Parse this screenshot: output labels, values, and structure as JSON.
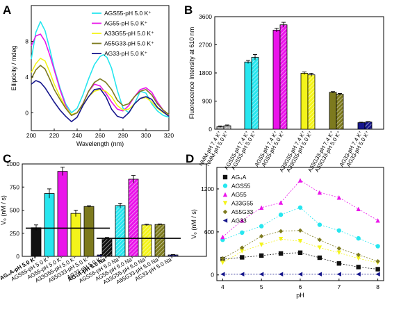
{
  "colors": {
    "cyan": "#27e6ef",
    "magenta": "#ea14ea",
    "yellow": "#f4f41a",
    "olive": "#7d7a1e",
    "navy": "#16168c",
    "black": "#111111",
    "gray": "#b7b7b7"
  },
  "chart_data": [
    {
      "panel": "A",
      "type": "line",
      "xlabel": "Wavelength (nm)",
      "ylabel": "Ellipticity / mdeg",
      "xlim": [
        200,
        320
      ],
      "ylim": [
        -2,
        12
      ],
      "xticks": [
        200,
        220,
        240,
        260,
        280,
        300,
        320
      ],
      "yticks": [
        0,
        4,
        8
      ],
      "legend_position": "top-right",
      "series": [
        {
          "name": "AGS55-pH 5.0 K⁺",
          "color": "cyan",
          "x": [
            200,
            204,
            208,
            212,
            216,
            220,
            225,
            230,
            235,
            240,
            245,
            250,
            255,
            260,
            263,
            266,
            270,
            275,
            280,
            285,
            290,
            295,
            300,
            305,
            310,
            315,
            320
          ],
          "y": [
            6.0,
            9.0,
            10.2,
            9.2,
            7.2,
            5.0,
            2.8,
            1.0,
            0.0,
            0.5,
            2.0,
            3.8,
            5.4,
            6.3,
            6.5,
            6.2,
            5.0,
            2.5,
            0.5,
            0.0,
            1.0,
            2.4,
            2.2,
            1.0,
            0.2,
            -0.3,
            -0.5
          ]
        },
        {
          "name": "AG55-pH 5.0 K⁺",
          "color": "magenta",
          "x": [
            200,
            204,
            208,
            212,
            216,
            220,
            225,
            230,
            235,
            240,
            245,
            250,
            255,
            260,
            265,
            270,
            275,
            280,
            285,
            290,
            295,
            300,
            305,
            310,
            315,
            320
          ],
          "y": [
            7.5,
            8.6,
            8.8,
            8.0,
            6.5,
            4.8,
            2.6,
            0.8,
            -0.3,
            0.0,
            1.0,
            2.4,
            3.2,
            3.0,
            2.2,
            1.2,
            0.4,
            0.2,
            0.8,
            1.8,
            2.6,
            2.8,
            2.3,
            1.2,
            0.3,
            -0.3
          ]
        },
        {
          "name": "A33G55-pH 5.0 K⁺",
          "color": "yellow",
          "x": [
            200,
            204,
            208,
            212,
            216,
            220,
            225,
            230,
            235,
            240,
            245,
            250,
            255,
            260,
            265,
            270,
            275,
            280,
            285,
            290,
            295,
            300,
            305,
            310,
            315,
            320
          ],
          "y": [
            4.5,
            5.5,
            6.1,
            5.8,
            4.6,
            3.2,
            1.8,
            0.6,
            -0.2,
            0.0,
            0.8,
            1.8,
            2.4,
            2.6,
            2.4,
            1.8,
            0.8,
            0.3,
            0.4,
            1.0,
            1.6,
            1.7,
            1.2,
            0.5,
            0.0,
            -0.2
          ]
        },
        {
          "name": "A55G33-pH 5.0 K⁺",
          "color": "olive",
          "x": [
            200,
            204,
            208,
            212,
            216,
            220,
            225,
            230,
            235,
            240,
            245,
            250,
            255,
            260,
            265,
            270,
            275,
            280,
            285,
            290,
            295,
            300,
            305,
            310,
            315,
            320
          ],
          "y": [
            3.8,
            4.8,
            5.3,
            4.9,
            3.8,
            2.6,
            1.5,
            0.5,
            -0.3,
            0.0,
            1.0,
            2.4,
            3.4,
            3.8,
            3.4,
            2.6,
            1.4,
            0.8,
            1.0,
            1.8,
            2.4,
            2.6,
            2.0,
            1.0,
            0.3,
            -0.2
          ]
        },
        {
          "name": "AG33-pH 5.0 K⁺",
          "color": "navy",
          "x": [
            200,
            204,
            208,
            212,
            216,
            220,
            225,
            230,
            235,
            240,
            245,
            250,
            255,
            260,
            265,
            270,
            275,
            280,
            285,
            290,
            295,
            300,
            305,
            310,
            315,
            320
          ],
          "y": [
            3.2,
            3.6,
            3.4,
            2.8,
            2.0,
            1.2,
            0.3,
            -0.4,
            -1.0,
            -0.5,
            0.8,
            1.8,
            2.6,
            2.7,
            1.8,
            0.4,
            -0.4,
            -0.6,
            0.0,
            1.0,
            1.6,
            1.8,
            1.5,
            0.6,
            0.1,
            -0.4
          ]
        }
      ]
    },
    {
      "panel": "B",
      "type": "bar",
      "ylabel": "Fluorescence Intensity at 610 nm",
      "ylim": [
        0,
        3600
      ],
      "yticks": [
        0,
        900,
        1800,
        2700,
        3600
      ],
      "groups": [
        {
          "color": "gray",
          "bars": [
            {
              "label": "NMM-pH 7.4 K⁺",
              "value": 80,
              "err": 25,
              "hatch": false
            },
            {
              "label": "NMM-pH 5.0 K⁺",
              "value": 110,
              "err": 25,
              "hatch": true
            }
          ]
        },
        {
          "color": "cyan",
          "bars": [
            {
              "label": "AGS55-pH 7.4 K⁺",
              "value": 2150,
              "err": 50,
              "hatch": false
            },
            {
              "label": "AGS55-pH 5.0 K⁺",
              "value": 2300,
              "err": 90,
              "hatch": true
            }
          ]
        },
        {
          "color": "magenta",
          "bars": [
            {
              "label": "AG55-pH 7.4 K⁺",
              "value": 3170,
              "err": 60,
              "hatch": false
            },
            {
              "label": "AG55-pH 5.0 K⁺",
              "value": 3340,
              "err": 80,
              "hatch": true
            }
          ]
        },
        {
          "color": "yellow",
          "bars": [
            {
              "label": "A33G55-pH 7.4 K⁺",
              "value": 1790,
              "err": 40,
              "hatch": false
            },
            {
              "label": "A33G55-pH 5.0 K⁺",
              "value": 1740,
              "err": 50,
              "hatch": true
            }
          ]
        },
        {
          "color": "olive",
          "bars": [
            {
              "label": "A55G33-pH 7.4 K⁺",
              "value": 1180,
              "err": 25,
              "hatch": false
            },
            {
              "label": "A55G33-pH 5.0 K⁺",
              "value": 1120,
              "err": 25,
              "hatch": true
            }
          ]
        },
        {
          "color": "navy",
          "bars": [
            {
              "label": "AG33-pH 7.4 K⁺",
              "value": 210,
              "err": 15,
              "hatch": false
            },
            {
              "label": "AG33-pH 5.0 K⁺",
              "value": 230,
              "err": 15,
              "hatch": true
            }
          ]
        }
      ]
    },
    {
      "panel": "C",
      "type": "bar",
      "ylabel": "V₀ (nM / s)",
      "ylim": [
        0,
        1000
      ],
      "yticks": [
        0,
        250,
        500,
        750,
        1000
      ],
      "reference_lines": [
        {
          "value": 305,
          "group": 0
        },
        {
          "value": 195,
          "group": 1
        }
      ],
      "groups": [
        {
          "hatch": false,
          "bars": [
            {
              "label": "AG₄A-pH 5.0 K⁺",
              "value": 310,
              "err": 30,
              "color": "black",
              "bold": true
            },
            {
              "label": "AGS55-pH 5.0 K⁺",
              "value": 680,
              "err": 50,
              "color": "cyan",
              "bold": false
            },
            {
              "label": "AG55-pH 5.0 K⁺",
              "value": 920,
              "err": 45,
              "color": "magenta",
              "bold": false
            },
            {
              "label": "A33G55-pH 5.0 K⁺",
              "value": 465,
              "err": 35,
              "color": "yellow",
              "bold": false
            },
            {
              "label": "A55G33-pH 5.0 K⁺",
              "value": 540,
              "err": 8,
              "color": "olive",
              "bold": false
            },
            {
              "label": "AG33-pH 5.0 K⁺",
              "value": 15,
              "err": 5,
              "color": "navy",
              "bold": false
            }
          ]
        },
        {
          "hatch": true,
          "bars": [
            {
              "label": "AG₄A-pH 5.0 Na⁺",
              "value": 195,
              "err": 10,
              "color": "black",
              "bold": true
            },
            {
              "label": "AGS55-pH 5.0 Na⁺",
              "value": 550,
              "err": 25,
              "color": "cyan",
              "bold": false
            },
            {
              "label": "AG55-pH 5.0 Na⁺",
              "value": 835,
              "err": 40,
              "color": "magenta",
              "bold": false
            },
            {
              "label": "A33G55-pH 5.0 Na⁺",
              "value": 340,
              "err": 8,
              "color": "yellow",
              "bold": false
            },
            {
              "label": "A55G33-pH 5.0 Na⁺",
              "value": 345,
              "err": 6,
              "color": "olive",
              "bold": false
            },
            {
              "label": "AG33-pH 5.0 Na⁺",
              "value": 15,
              "err": 5,
              "color": "navy",
              "bold": false
            }
          ]
        }
      ]
    },
    {
      "panel": "D",
      "type": "scatter",
      "xlabel": "pH",
      "ylabel": "V₀ (nM / s)",
      "xlim": [
        3.85,
        8.15
      ],
      "ylim": [
        -80,
        1500
      ],
      "xticks": [
        4,
        5,
        6,
        7,
        8
      ],
      "yticks": [
        0,
        600,
        1200
      ],
      "legend_position": "top-left",
      "series": [
        {
          "name": "AG₄A",
          "color": "black",
          "marker": "square",
          "x": [
            4,
            4.5,
            5,
            5.5,
            6,
            6.5,
            7,
            7.5,
            8
          ],
          "y": [
            220,
            245,
            270,
            300,
            310,
            240,
            160,
            110,
            80
          ]
        },
        {
          "name": "AGS55",
          "color": "cyan",
          "marker": "circle",
          "x": [
            4,
            4.5,
            5,
            5.5,
            6,
            6.5,
            7,
            7.5,
            8
          ],
          "y": [
            490,
            590,
            680,
            840,
            940,
            700,
            620,
            510,
            400
          ]
        },
        {
          "name": "AG55",
          "color": "magenta",
          "marker": "triangle-up",
          "x": [
            4,
            4.5,
            5,
            5.5,
            6,
            6.5,
            7,
            7.5,
            8
          ],
          "y": [
            530,
            760,
            940,
            1010,
            1320,
            1150,
            1080,
            920,
            760
          ]
        },
        {
          "name": "A33G55",
          "color": "yellow",
          "marker": "triangle-down",
          "x": [
            4,
            4.5,
            5,
            5.5,
            6,
            6.5,
            7,
            7.5,
            8
          ],
          "y": [
            170,
            330,
            420,
            500,
            470,
            380,
            310,
            230,
            170
          ]
        },
        {
          "name": "A55G33",
          "color": "olive",
          "marker": "diamond",
          "x": [
            4,
            4.5,
            5,
            5.5,
            6,
            6.5,
            7,
            7.5,
            8
          ],
          "y": [
            230,
            380,
            540,
            610,
            620,
            490,
            370,
            280,
            190
          ]
        },
        {
          "name": "AG33",
          "color": "navy",
          "marker": "triangle-left",
          "x": [
            4,
            4.5,
            5,
            5.5,
            6,
            6.5,
            7,
            7.5,
            8
          ],
          "y": [
            10,
            10,
            10,
            10,
            10,
            10,
            10,
            10,
            10
          ]
        }
      ]
    }
  ]
}
